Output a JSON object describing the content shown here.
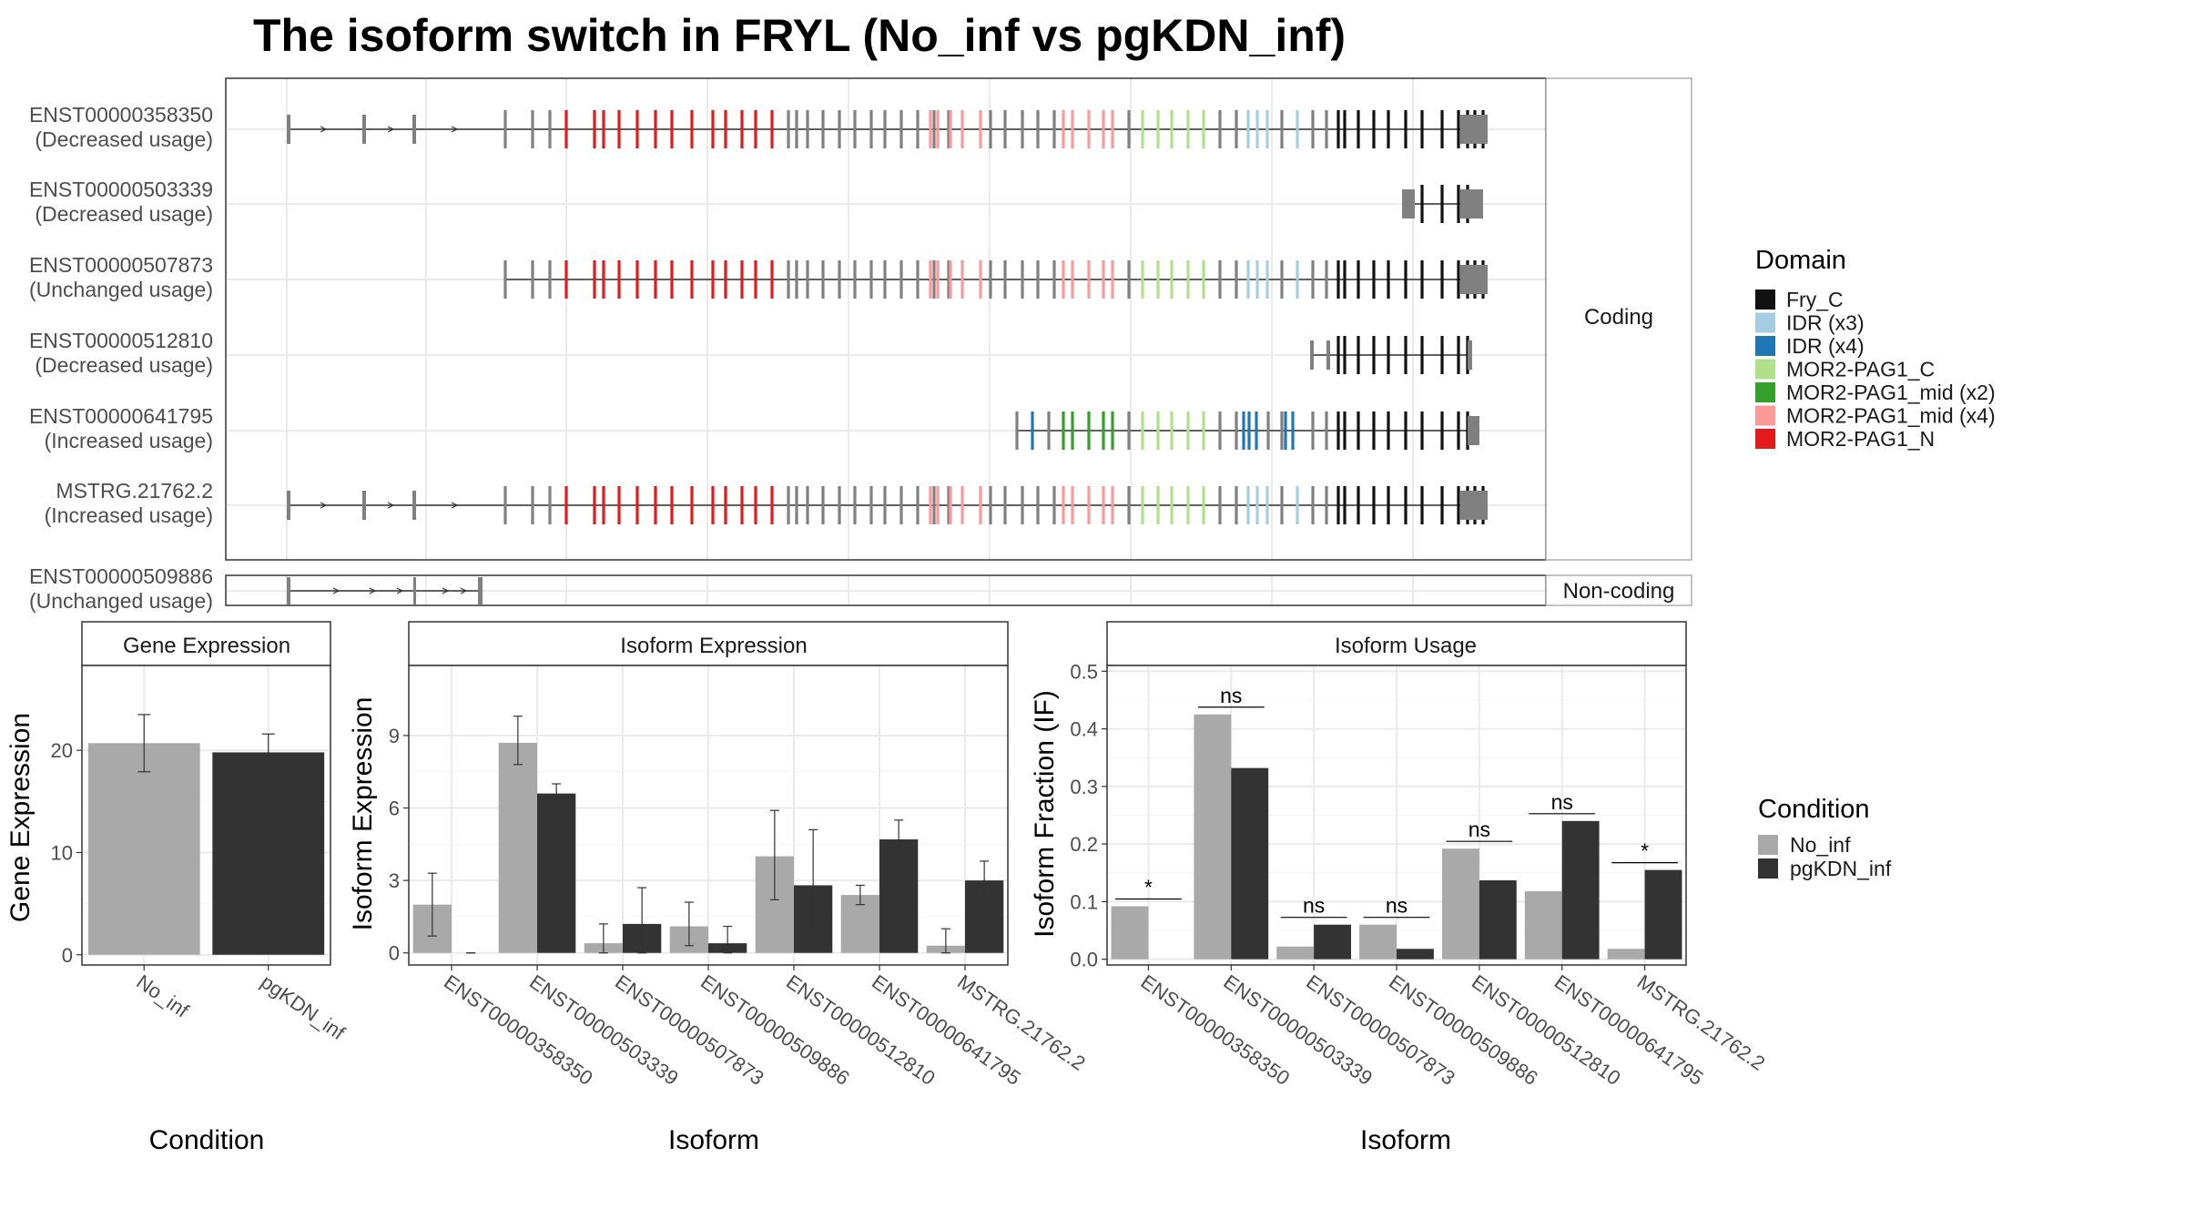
{
  "title": "The isoform switch in FRYL (No_inf vs pgKDN_inf)",
  "structure_panel": {
    "coding_label": "Coding",
    "noncoding_label": "Non-coding",
    "coding_isoforms": [
      {
        "name": "ENST00000358350",
        "usage": "(Decreased usage)"
      },
      {
        "name": "ENST00000503339",
        "usage": "(Decreased usage)"
      },
      {
        "name": "ENST00000507873",
        "usage": "(Unchanged usage)"
      },
      {
        "name": "ENST00000512810",
        "usage": "(Decreased usage)"
      },
      {
        "name": "ENST00000641795",
        "usage": "(Increased usage)"
      },
      {
        "name": "MSTRG.21762.2",
        "usage": "(Increased usage)"
      }
    ],
    "noncoding_isoforms": [
      {
        "name": "ENST00000509886",
        "usage": "(Unchanged usage)"
      }
    ]
  },
  "domain_legend": {
    "title": "Domain",
    "items": [
      {
        "label": "Fry_C",
        "color": "#111111"
      },
      {
        "label": "IDR (x3)",
        "color": "#a6cee3"
      },
      {
        "label": "IDR (x4)",
        "color": "#1f78b4"
      },
      {
        "label": "MOR2-PAG1_C",
        "color": "#b2df8a"
      },
      {
        "label": "MOR2-PAG1_mid (x2)",
        "color": "#33a02c"
      },
      {
        "label": "MOR2-PAG1_mid (x4)",
        "color": "#fb9a99"
      },
      {
        "label": "MOR2-PAG1_N",
        "color": "#e31a1c"
      }
    ]
  },
  "condition_legend": {
    "title": "Condition",
    "items": [
      {
        "label": "No_inf",
        "color": "#a9a9a9"
      },
      {
        "label": "pgKDN_inf",
        "color": "#333333"
      }
    ]
  },
  "chart_data": [
    {
      "type": "bar",
      "title": "Gene Expression",
      "xlabel": "Condition",
      "ylabel": "Gene Expression",
      "categories": [
        "No_inf",
        "pgKDN_inf"
      ],
      "values": [
        20.7,
        19.8
      ],
      "error_low": [
        17.9,
        18.0
      ],
      "error_high": [
        23.5,
        21.6
      ],
      "colors": [
        "#a9a9a9",
        "#333333"
      ],
      "yticks": [
        0,
        10,
        20
      ],
      "ylim": [
        -1,
        28.3
      ],
      "grid": true
    },
    {
      "type": "bar",
      "title": "Isoform Expression",
      "xlabel": "Isoform",
      "ylabel": "Isoform Expression",
      "categories": [
        "ENST00000358350",
        "ENST00000503339",
        "ENST00000507873",
        "ENST00000509886",
        "ENST00000512810",
        "ENST00000641795",
        "MSTRG.21762.2"
      ],
      "series": [
        {
          "name": "No_inf",
          "values": [
            2.0,
            8.7,
            0.4,
            1.1,
            4.0,
            2.4,
            0.3
          ],
          "err_low": [
            0.7,
            7.8,
            0.0,
            0.3,
            2.2,
            2.0,
            0.0
          ],
          "err_high": [
            3.3,
            9.8,
            1.2,
            2.1,
            5.9,
            2.8,
            1.0
          ]
        },
        {
          "name": "pgKDN_inf",
          "values": [
            0.0,
            6.6,
            1.2,
            0.4,
            2.8,
            4.7,
            3.0
          ],
          "err_low": [
            0.0,
            6.2,
            0.0,
            0.0,
            0.6,
            3.9,
            2.2
          ],
          "err_high": [
            0.0,
            7.0,
            2.7,
            1.1,
            5.1,
            5.5,
            3.8
          ]
        }
      ],
      "yticks": [
        0,
        3,
        6,
        9
      ],
      "ylim": [
        -0.5,
        11.9
      ],
      "grid": true
    },
    {
      "type": "bar",
      "title": "Isoform Usage",
      "xlabel": "Isoform",
      "ylabel": "Isoform Fraction (IF)",
      "categories": [
        "ENST00000358350",
        "ENST00000503339",
        "ENST00000507873",
        "ENST00000509886",
        "ENST00000512810",
        "ENST00000641795",
        "MSTRG.21762.2"
      ],
      "series": [
        {
          "name": "No_inf",
          "values": [
            0.092,
            0.425,
            0.022,
            0.06,
            0.192,
            0.118,
            0.018
          ]
        },
        {
          "name": "pgKDN_inf",
          "values": [
            0.0,
            0.332,
            0.06,
            0.018,
            0.137,
            0.24,
            0.155
          ]
        }
      ],
      "significance": [
        "*",
        "ns",
        "ns",
        "ns",
        "ns",
        "ns",
        "*"
      ],
      "yticks": [
        0.0,
        0.1,
        0.2,
        0.3,
        0.4,
        0.5
      ],
      "ylim": [
        -0.01,
        0.51
      ],
      "grid": true
    }
  ]
}
